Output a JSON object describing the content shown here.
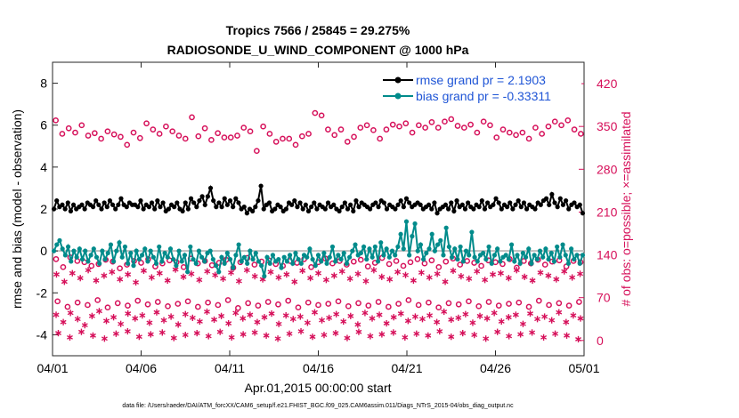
{
  "colors": {
    "rmse": "#000000",
    "bias": "#008b8b",
    "obs": "#d6105a",
    "zero": "#bfbfbf"
  },
  "chart_data": {
    "type": "line",
    "title_lines": [
      "Tropics 7566 / 25845 = 29.275%",
      "RADIOSONDE_U_WIND_COMPONENT @ 1000 hPa"
    ],
    "xlabel": "Apr.01,2015 00:00:00 start",
    "ylabel": "rmse and bias (model - observation)",
    "y2label": "# of obs: o=possible; ×=assimilated",
    "footnote": "data file: /Users/raeder/DAI/ATM_forcXX/CAM6_setup/f.e21.FHIST_BGC.f09_025.CAM6assim.011/Diags_NTrS_2015-04/obs_diag_output.nc",
    "xlim": [
      0,
      30
    ],
    "ylim": [
      -5,
      9
    ],
    "y2lim": [
      -25,
      455
    ],
    "x_ticks": [
      0,
      5,
      10,
      15,
      20,
      25,
      30
    ],
    "x_tick_labels": [
      "04/01",
      "04/06",
      "04/11",
      "04/16",
      "04/21",
      "04/26",
      "05/01"
    ],
    "y_ticks": [
      -4,
      -2,
      0,
      2,
      4,
      6,
      8
    ],
    "y_tick_labels": [
      "-4",
      "-2",
      "0",
      "2",
      "4",
      "6",
      "8"
    ],
    "y2_ticks": [
      0,
      70,
      140,
      210,
      280,
      350,
      420
    ],
    "y2_tick_labels": [
      "0",
      "70",
      "140",
      "210",
      "280",
      "350",
      "420"
    ],
    "legend": [
      "rmse grand pr = 2.1903",
      "bias grand pr = -0.33311"
    ],
    "legend_position": "top-right",
    "series": [
      {
        "name": "rmse",
        "axis": "left",
        "values": [
          2.0,
          2.4,
          2.1,
          2.2,
          2.0,
          2.3,
          1.9,
          2.2,
          2.0,
          2.1,
          2.2,
          2.0,
          2.3,
          2.2,
          2.1,
          2.4,
          2.2,
          2.0,
          2.3,
          2.1,
          2.4,
          2.2,
          2.0,
          2.2,
          2.5,
          2.2,
          2.1,
          2.3,
          2.2,
          2.2,
          2.1,
          2.4,
          2.0,
          2.2,
          2.1,
          2.3,
          2.0,
          2.4,
          2.1,
          2.3,
          1.9,
          2.0,
          2.2,
          2.1,
          2.3,
          2.0,
          1.9,
          2.3,
          2.0,
          2.5,
          2.3,
          2.1,
          2.4,
          2.6,
          2.2,
          2.6,
          3.0,
          2.4,
          2.1,
          2.3,
          2.1,
          2.5,
          2.2,
          2.4,
          2.1,
          2.5,
          2.3,
          2.0,
          2.1,
          1.8,
          2.0,
          1.9,
          2.1,
          2.4,
          3.1,
          2.0,
          2.2,
          2.3,
          1.9,
          2.0,
          2.2,
          2.1,
          1.9,
          2.0,
          2.3,
          2.2,
          2.4,
          2.1,
          2.3,
          2.0,
          2.2,
          1.9,
          2.1,
          2.3,
          2.0,
          2.2,
          2.1,
          2.0,
          2.3,
          2.1,
          2.2,
          2.0,
          1.9,
          2.1,
          2.3,
          2.0,
          2.2,
          1.9,
          2.4,
          2.1,
          2.3,
          2.2,
          2.1,
          2.0,
          2.2,
          2.3,
          2.1,
          2.4,
          2.3,
          2.0,
          2.2,
          2.1,
          2.0,
          2.2,
          2.4,
          2.1,
          2.5,
          2.3,
          2.1,
          2.2,
          2.3,
          2.2,
          2.0,
          2.1,
          2.2,
          2.0,
          2.3,
          1.8,
          2.0,
          2.1,
          2.2,
          2.0,
          2.3,
          1.9,
          2.4,
          2.1,
          2.2,
          2.0,
          2.3,
          2.1,
          2.0,
          2.2,
          2.1,
          2.4,
          2.0,
          2.3,
          2.1,
          2.2,
          2.5,
          2.3,
          2.0,
          2.2,
          2.1,
          2.3,
          2.0,
          2.2,
          2.4,
          2.1,
          2.3,
          2.0,
          2.2,
          2.1,
          2.0,
          2.3,
          2.2,
          2.4,
          2.5,
          2.2,
          2.7,
          2.3,
          2.1,
          2.5,
          2.2,
          2.4,
          2.0,
          2.2,
          2.3,
          2.1,
          2.2,
          1.8
        ]
      },
      {
        "name": "bias",
        "axis": "left",
        "values": [
          0.0,
          0.3,
          0.5,
          0.1,
          -0.2,
          0.2,
          -0.5,
          0.0,
          -0.3,
          0.1,
          -0.4,
          0.0,
          -0.5,
          -0.2,
          0.1,
          -0.3,
          -0.6,
          0.0,
          -0.4,
          -0.1,
          0.3,
          -0.5,
          0.0,
          0.4,
          -0.3,
          0.2,
          -0.6,
          -0.1,
          -0.7,
          0.0,
          -0.4,
          -0.2,
          0.1,
          -0.5,
          0.0,
          -0.3,
          -0.6,
          0.2,
          -0.5,
          -0.1,
          -0.3,
          0.1,
          -0.4,
          -0.7,
          0.0,
          -0.5,
          -0.2,
          -1.0,
          0.2,
          -0.4,
          -0.6,
          0.0,
          -0.3,
          -0.5,
          -0.1,
          0.0,
          -0.4,
          -0.7,
          -1.0,
          -0.3,
          -0.6,
          -0.1,
          -0.4,
          -0.8,
          -0.2,
          0.3,
          -0.5,
          -0.3,
          -0.6,
          0.0,
          -0.4,
          -0.1,
          -0.5,
          -0.7,
          -1.2,
          -0.3,
          -0.6,
          -0.2,
          -0.5,
          -0.4,
          -0.8,
          -0.3,
          -0.5,
          -0.2,
          -0.6,
          -0.1,
          -0.4,
          -0.6,
          -0.2,
          -0.3,
          0.1,
          -0.4,
          -0.7,
          -0.2,
          -0.5,
          -0.1,
          -0.6,
          -0.3,
          0.2,
          -0.5,
          -0.2,
          -0.4,
          -0.1,
          -0.6,
          -0.3,
          0.0,
          0.3,
          -0.2,
          -0.1,
          0.2,
          -0.4,
          0.1,
          -0.3,
          0.2,
          -0.5,
          0.4,
          -0.2,
          0.1,
          -0.3,
          0.0,
          -0.2,
          0.2,
          0.8,
          0.1,
          1.4,
          -0.2,
          0.7,
          1.3,
          0.0,
          0.3,
          -0.4,
          -0.1,
          0.1,
          0.8,
          0.0,
          0.3,
          0.5,
          -0.2,
          1.1,
          0.2,
          -0.3,
          0.1,
          -0.4,
          0.2,
          -0.5,
          0.0,
          -0.2,
          0.9,
          -0.3,
          -0.5,
          -0.2,
          -0.1,
          -0.4,
          0.2,
          -0.6,
          -0.2,
          0.1,
          -0.5,
          -0.3,
          -0.2,
          -0.4,
          0.3,
          -0.5,
          -0.2,
          -0.6,
          -0.1,
          -0.3,
          0.1,
          -0.6,
          -0.2,
          -0.4,
          0.0,
          -0.3,
          0.1,
          -0.4,
          -0.1,
          -0.5,
          0.2,
          -0.3,
          0.3,
          -0.2,
          -0.6,
          0.1,
          -0.4,
          -0.2,
          -0.6,
          -0.2
        ]
      },
      {
        "name": "possible (upper group)",
        "axis": "right",
        "marker": "o",
        "values": [
          360,
          338,
          347,
          340,
          352,
          335,
          339,
          330,
          342,
          337,
          333,
          320,
          340,
          331,
          355,
          345,
          338,
          350,
          342,
          335,
          330,
          365,
          334,
          347,
          328,
          339,
          332,
          332,
          335,
          348,
          342,
          310,
          350,
          338,
          325,
          330,
          330,
          320,
          334,
          338,
          372,
          368,
          345,
          336,
          345,
          325,
          333,
          348,
          352,
          344,
          330,
          345,
          353,
          350,
          355,
          340,
          352,
          348,
          357,
          348,
          358,
          362,
          351,
          348,
          353,
          340,
          358,
          352,
          332,
          345,
          340,
          336,
          340,
          330,
          348,
          338,
          350,
          358,
          352,
          360,
          345,
          338
        ]
      },
      {
        "name": "possible (lower group)",
        "axis": "right",
        "marker": "o",
        "values": [
          133,
          120,
          136,
          130,
          128,
          122,
          125,
          132,
          129,
          118,
          124,
          130,
          127,
          133,
          121,
          126,
          131,
          128,
          120,
          134,
          126,
          130,
          123,
          127,
          132,
          119,
          128,
          135,
          124,
          129,
          131,
          125,
          122,
          130,
          127,
          133,
          120,
          128,
          134,
          126,
          130,
          124,
          129,
          132,
          121,
          127,
          135,
          125,
          130,
          122,
          128,
          133,
          126,
          131,
          120,
          129,
          134,
          124,
          130,
          127,
          122,
          131,
          128,
          125,
          133,
          119,
          130,
          126,
          132,
          124,
          129,
          131,
          121,
          130,
          128
        ]
      },
      {
        "name": "possible (bottom group)",
        "axis": "right",
        "marker": "o",
        "values": [
          64,
          55,
          62,
          58,
          66,
          54,
          61,
          57,
          65,
          59,
          63,
          56,
          60,
          64,
          55,
          62,
          58,
          66,
          53,
          61,
          57,
          63,
          59,
          65,
          54,
          62,
          58,
          60,
          64,
          56,
          61,
          57,
          63,
          55,
          60,
          66,
          58,
          62,
          54,
          61,
          59,
          64,
          56,
          63,
          57,
          60,
          62,
          55,
          65,
          58,
          61,
          57,
          63
        ]
      },
      {
        "name": "assimilated (upper group)",
        "axis": "right",
        "marker": "*",
        "values": [
          108,
          96,
          110,
          102,
          115,
          98,
          106,
          112,
          100,
          108,
          95,
          114,
          103,
          110,
          98,
          116,
          104,
          109,
          99,
          113,
          107,
          101,
          111,
          97,
          115,
          105,
          100,
          112,
          103,
          108,
          96,
          114,
          102,
          110,
          99,
          106,
          113,
          101,
          109,
          97,
          115,
          104,
          100,
          112,
          107,
          98,
          111,
          103,
          109,
          96,
          114,
          105,
          101,
          113,
          99,
          108,
          110,
          102,
          115,
          104,
          98,
          111,
          106,
          100,
          113,
          103,
          109
        ]
      },
      {
        "name": "assimilated (lower group)",
        "axis": "right",
        "marker": "*",
        "values": [
          42,
          30,
          45,
          35,
          25,
          40,
          48,
          32,
          38,
          27,
          44,
          36,
          41,
          29,
          46,
          33,
          39,
          26,
          43,
          37,
          31,
          47,
          34,
          40,
          28,
          45,
          36,
          42,
          30,
          38,
          44,
          27,
          41,
          35,
          39,
          29,
          46,
          33,
          37,
          43,
          31,
          40,
          26,
          45,
          36,
          42,
          28,
          38,
          44,
          32,
          39,
          35,
          41,
          30,
          47,
          34,
          37,
          43,
          29,
          40,
          36,
          45,
          31,
          38,
          42,
          27,
          44,
          35,
          39,
          33,
          46,
          30,
          41,
          36
        ]
      },
      {
        "name": "assimilated (bottom group)",
        "axis": "right",
        "marker": "*",
        "values": [
          12,
          5,
          14,
          8,
          3,
          11,
          15,
          6,
          10,
          13,
          4,
          9,
          12,
          7,
          14,
          5,
          10,
          13,
          8,
          3,
          11,
          15,
          6,
          9,
          12,
          4,
          14,
          7,
          10,
          13,
          5,
          11,
          8,
          15,
          6,
          12,
          9,
          3,
          14,
          7,
          10,
          13,
          5,
          11,
          8,
          2
        ]
      }
    ]
  }
}
